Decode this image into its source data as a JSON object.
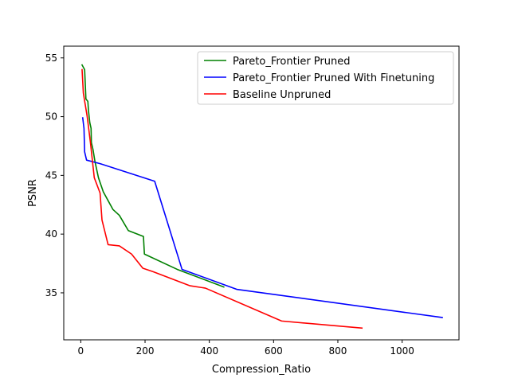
{
  "chart_data": {
    "type": "line",
    "title": "",
    "xlabel": "Compression_Ratio",
    "ylabel": "PSNR",
    "xlim": [
      -53,
      1177
    ],
    "ylim": [
      31,
      56
    ],
    "xticks": [
      0,
      200,
      400,
      600,
      800,
      1000
    ],
    "yticks": [
      35,
      40,
      45,
      50,
      55
    ],
    "grid": false,
    "legend_position": "top-right",
    "series": [
      {
        "name": "Pareto_Frontier Pruned",
        "color": "#008000",
        "points": [
          [
            4,
            54.4
          ],
          [
            12,
            54.0
          ],
          [
            16,
            51.5
          ],
          [
            22,
            51.3
          ],
          [
            24,
            50.5
          ],
          [
            26,
            50.0
          ],
          [
            28,
            49.5
          ],
          [
            32,
            49.0
          ],
          [
            33,
            47.8
          ],
          [
            38,
            47.2
          ],
          [
            44,
            46.2
          ],
          [
            55,
            44.8
          ],
          [
            70,
            43.6
          ],
          [
            88,
            42.7
          ],
          [
            100,
            42.1
          ],
          [
            120,
            41.6
          ],
          [
            148,
            40.3
          ],
          [
            195,
            39.8
          ],
          [
            198,
            38.3
          ],
          [
            300,
            37.0
          ],
          [
            445,
            35.5
          ]
        ]
      },
      {
        "name": "Pareto_Frontier Pruned With Finetuning",
        "color": "#0000ff",
        "points": [
          [
            6,
            49.9
          ],
          [
            10,
            49.0
          ],
          [
            12,
            47.0
          ],
          [
            18,
            46.3
          ],
          [
            60,
            46.0
          ],
          [
            230,
            44.5
          ],
          [
            315,
            37.0
          ],
          [
            485,
            35.3
          ],
          [
            1125,
            32.9
          ]
        ]
      },
      {
        "name": "Baseline Unpruned",
        "color": "#ff0000",
        "points": [
          [
            4,
            54.0
          ],
          [
            8,
            52.0
          ],
          [
            14,
            51.0
          ],
          [
            20,
            50.0
          ],
          [
            30,
            47.8
          ],
          [
            42,
            44.8
          ],
          [
            60,
            43.5
          ],
          [
            66,
            41.2
          ],
          [
            85,
            39.1
          ],
          [
            120,
            39.0
          ],
          [
            158,
            38.3
          ],
          [
            193,
            37.1
          ],
          [
            225,
            36.8
          ],
          [
            340,
            35.6
          ],
          [
            388,
            35.4
          ],
          [
            625,
            32.6
          ],
          [
            875,
            32.0
          ]
        ]
      }
    ]
  }
}
